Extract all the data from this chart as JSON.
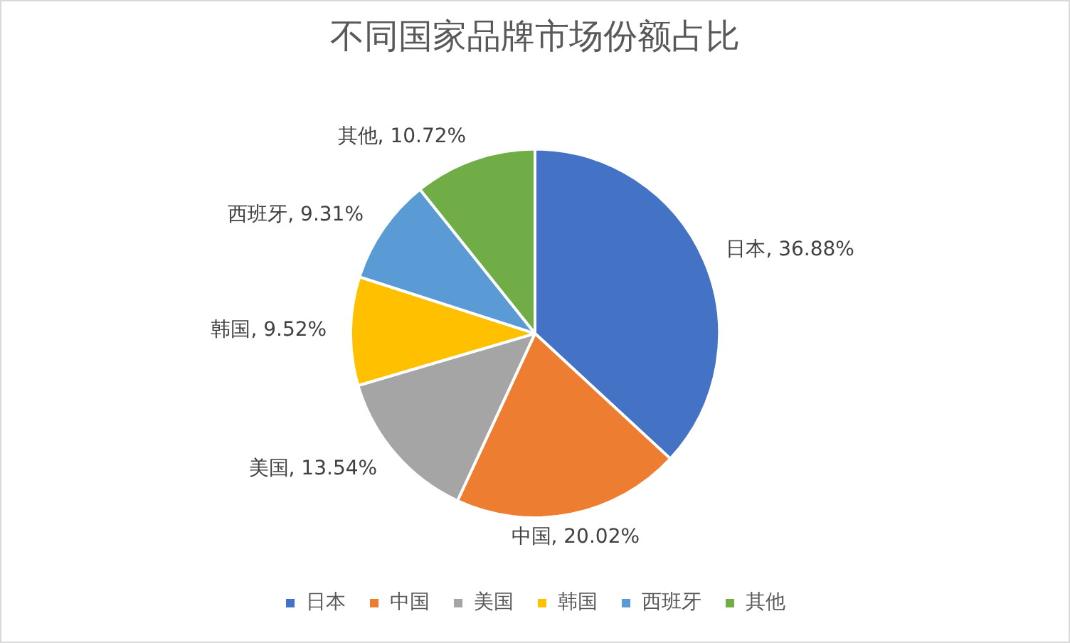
{
  "chart_data": {
    "type": "pie",
    "title": "不同国家品牌市场份额占比",
    "categories": [
      "日本",
      "中国",
      "美国",
      "韩国",
      "西班牙",
      "其他"
    ],
    "values": [
      36.88,
      20.02,
      13.54,
      9.52,
      9.31,
      10.72
    ],
    "value_labels": [
      "日本, 36.88%",
      "中国, 20.02%",
      "美国, 13.54%",
      "韩国, 9.52%",
      "西班牙, 9.31%",
      "其他, 10.72%"
    ],
    "colors": [
      "#4472c4",
      "#ed7d31",
      "#a5a5a5",
      "#ffc000",
      "#5b9bd5",
      "#70ad47"
    ],
    "legend": "bottom"
  }
}
